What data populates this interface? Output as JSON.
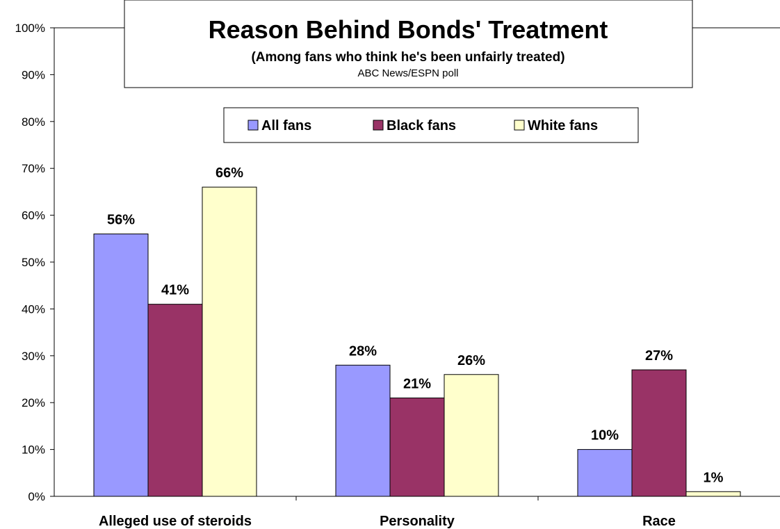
{
  "chart_data": {
    "type": "bar",
    "title": "Reason Behind Bonds' Treatment",
    "subtitle": "(Among fans who think he's been unfairly treated)",
    "source": "ABC News/ESPN poll",
    "categories": [
      "Alleged use of steroids",
      "Personality",
      "Race"
    ],
    "series": [
      {
        "name": "All fans",
        "color": "#9999ff",
        "values": [
          56,
          28,
          10
        ],
        "labels": [
          "56%",
          "28%",
          "10%"
        ]
      },
      {
        "name": "Black fans",
        "color": "#993366",
        "values": [
          41,
          21,
          27
        ],
        "labels": [
          "41%",
          "21%",
          "27%"
        ]
      },
      {
        "name": "White fans",
        "color": "#ffffcc",
        "values": [
          66,
          26,
          1
        ],
        "labels": [
          "66%",
          "26%",
          "1%"
        ]
      }
    ],
    "yticks": [
      "0%",
      "10%",
      "20%",
      "30%",
      "40%",
      "50%",
      "60%",
      "70%",
      "80%",
      "90%",
      "100%"
    ],
    "ylim": [
      0,
      100
    ],
    "grid": false,
    "legend": "top-center"
  }
}
